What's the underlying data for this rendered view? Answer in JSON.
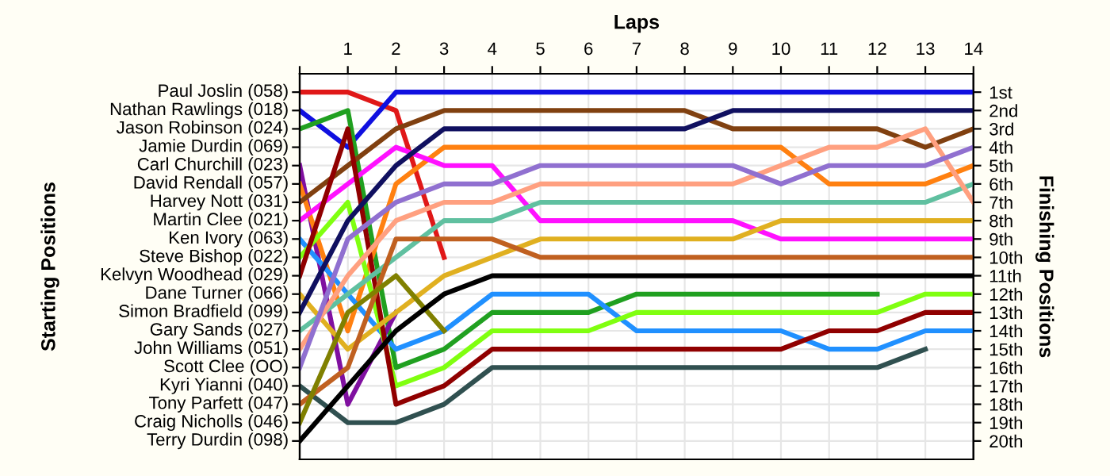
{
  "chart_data": {
    "type": "line",
    "xlabel": "Laps",
    "y2label": "Finishing Positions",
    "x": [
      0,
      1,
      2,
      3,
      4,
      5,
      6,
      7,
      8,
      9,
      10,
      11,
      12,
      13,
      14
    ],
    "xlim": [
      0,
      14
    ],
    "xticks": [
      {
        "value": 0,
        "label": null
      },
      1,
      2,
      3,
      4,
      5,
      6,
      7,
      8,
      9,
      10,
      11,
      12,
      13,
      14
    ],
    "annotations": [
      "Starting Positions",
      "Paul Joslin (058)",
      "Nathan Rawlings (018)",
      "Jason Robinson (024)",
      "Jamie Durdin (069)",
      "Carl Churchill (023)",
      "David Rendall (057)",
      "Harvey Nott (031)",
      "Martin Clee (021)",
      "Ken Ivory (063)",
      "Steve Bishop (022)",
      "Kelvyn Woodhead (029)",
      "Dane Turner (066)",
      "Simon Bradfield (099)",
      "Gary Sands (027)",
      "John Williams (051)",
      "Scott Clee (OO)",
      "Kyri Yianni (040)",
      "Tony Parfett (047)",
      "Craig Nicholls (046)",
      "Terry Durdin (098)"
    ],
    "y2lim": [
      21,
      0
    ],
    "y2ticks": [
      {
        "value": 1,
        "label": "1st"
      },
      {
        "value": 2,
        "label": "2nd"
      },
      {
        "value": 3,
        "label": "3rd"
      },
      {
        "value": 4,
        "label": "4th"
      },
      {
        "value": 5,
        "label": "5th"
      },
      {
        "value": 6,
        "label": "6th"
      },
      {
        "value": 7,
        "label": "7th"
      },
      {
        "value": 8,
        "label": "8th"
      },
      {
        "value": 9,
        "label": "9th"
      },
      {
        "value": 10,
        "label": "10th"
      },
      {
        "value": 11,
        "label": "11th"
      },
      {
        "value": 12,
        "label": "12th"
      },
      {
        "value": 13,
        "label": "13th"
      },
      {
        "value": 14,
        "label": "14th"
      },
      {
        "value": 15,
        "label": "15th"
      },
      {
        "value": 16,
        "label": "16th"
      },
      {
        "value": 17,
        "label": "17th"
      },
      {
        "value": 18,
        "label": "18th"
      },
      {
        "value": 19,
        "label": "19th"
      },
      {
        "value": 20,
        "label": "20th"
      }
    ],
    "grid": true,
    "marker": "none",
    "line_style": "solid",
    "series": [
      {
        "axis": "y2",
        "color": "#e01818",
        "values": [
          1,
          1,
          2,
          10,
          null,
          null,
          null,
          null,
          null,
          null,
          null,
          null,
          null,
          null,
          null
        ]
      },
      {
        "axis": "y2",
        "color": "#1010e0",
        "values": [
          2,
          4,
          1,
          1,
          1,
          1,
          1,
          1,
          1,
          1,
          1,
          1,
          1,
          1,
          1
        ]
      },
      {
        "axis": "y2",
        "color": "#20a020",
        "values": [
          3,
          2,
          16,
          15,
          13,
          13,
          13,
          12,
          12,
          12,
          12,
          12,
          12,
          null,
          null
        ]
      },
      {
        "axis": "y2",
        "color": "#8010a0",
        "values": [
          5,
          18,
          13,
          null,
          null,
          null,
          null,
          null,
          null,
          null,
          null,
          null,
          null,
          null,
          null
        ]
      },
      {
        "axis": "y2",
        "color": "#ff8010",
        "values": [
          6,
          14,
          6,
          4,
          4,
          4,
          4,
          4,
          4,
          4,
          4,
          6,
          6,
          6,
          5
        ]
      },
      {
        "axis": "y2",
        "color": "#804010",
        "values": [
          7,
          5,
          3,
          2,
          2,
          2,
          2,
          2,
          2,
          3,
          3,
          3,
          3,
          4,
          3
        ]
      },
      {
        "axis": "y2",
        "color": "#ff10ff",
        "values": [
          8,
          6,
          4,
          5,
          5,
          8,
          8,
          8,
          8,
          8,
          9,
          9,
          9,
          9,
          9
        ]
      },
      {
        "axis": "y2",
        "color": "#2090ff",
        "values": [
          9,
          12,
          15,
          14,
          12,
          12,
          12,
          14,
          14,
          14,
          14,
          15,
          15,
          14,
          14
        ]
      },
      {
        "axis": "y2",
        "color": "#80ff10",
        "values": [
          10,
          7,
          17,
          16,
          14,
          14,
          14,
          13,
          13,
          13,
          13,
          13,
          13,
          12,
          12
        ]
      },
      {
        "axis": "y2",
        "color": "#900000",
        "values": [
          11,
          3,
          18,
          17,
          15,
          15,
          15,
          15,
          15,
          15,
          15,
          14,
          14,
          13,
          13
        ]
      },
      {
        "axis": "y2",
        "color": "#e0b020",
        "values": [
          12,
          15,
          13,
          11,
          10,
          9,
          9,
          9,
          9,
          9,
          8,
          8,
          8,
          8,
          8
        ]
      },
      {
        "axis": "y2",
        "color": "#101060",
        "values": [
          13,
          8,
          5,
          3,
          3,
          3,
          3,
          3,
          3,
          2,
          2,
          2,
          2,
          2,
          2
        ]
      },
      {
        "axis": "y2",
        "color": "#60c0a0",
        "values": [
          14,
          12,
          10,
          8,
          8,
          7,
          7,
          7,
          7,
          7,
          7,
          7,
          7,
          7,
          6
        ]
      },
      {
        "axis": "y2",
        "color": "#ffa080",
        "values": [
          15,
          11,
          8,
          7,
          7,
          6,
          6,
          6,
          6,
          6,
          5,
          4,
          4,
          3,
          7
        ]
      },
      {
        "axis": "y2",
        "color": "#9070d0",
        "values": [
          16,
          9,
          7,
          6,
          6,
          5,
          5,
          5,
          5,
          5,
          6,
          5,
          5,
          5,
          4
        ]
      },
      {
        "axis": "y2",
        "color": "#305050",
        "values": [
          17,
          19,
          19,
          18,
          16,
          16,
          16,
          16,
          16,
          16,
          16,
          16,
          16,
          15,
          null
        ]
      },
      {
        "axis": "y2",
        "color": "#c06020",
        "values": [
          18,
          16,
          9,
          9,
          9,
          10,
          10,
          10,
          10,
          10,
          10,
          10,
          10,
          10,
          10
        ]
      },
      {
        "axis": "y2",
        "color": "#808000",
        "values": [
          19,
          13,
          11,
          14,
          null,
          null,
          null,
          null,
          null,
          null,
          null,
          null,
          null,
          null,
          null
        ]
      },
      {
        "axis": "y2",
        "color": "#000000",
        "values": [
          20,
          17,
          14,
          12,
          11,
          11,
          11,
          11,
          11,
          11,
          11,
          11,
          11,
          11,
          11
        ]
      }
    ]
  }
}
